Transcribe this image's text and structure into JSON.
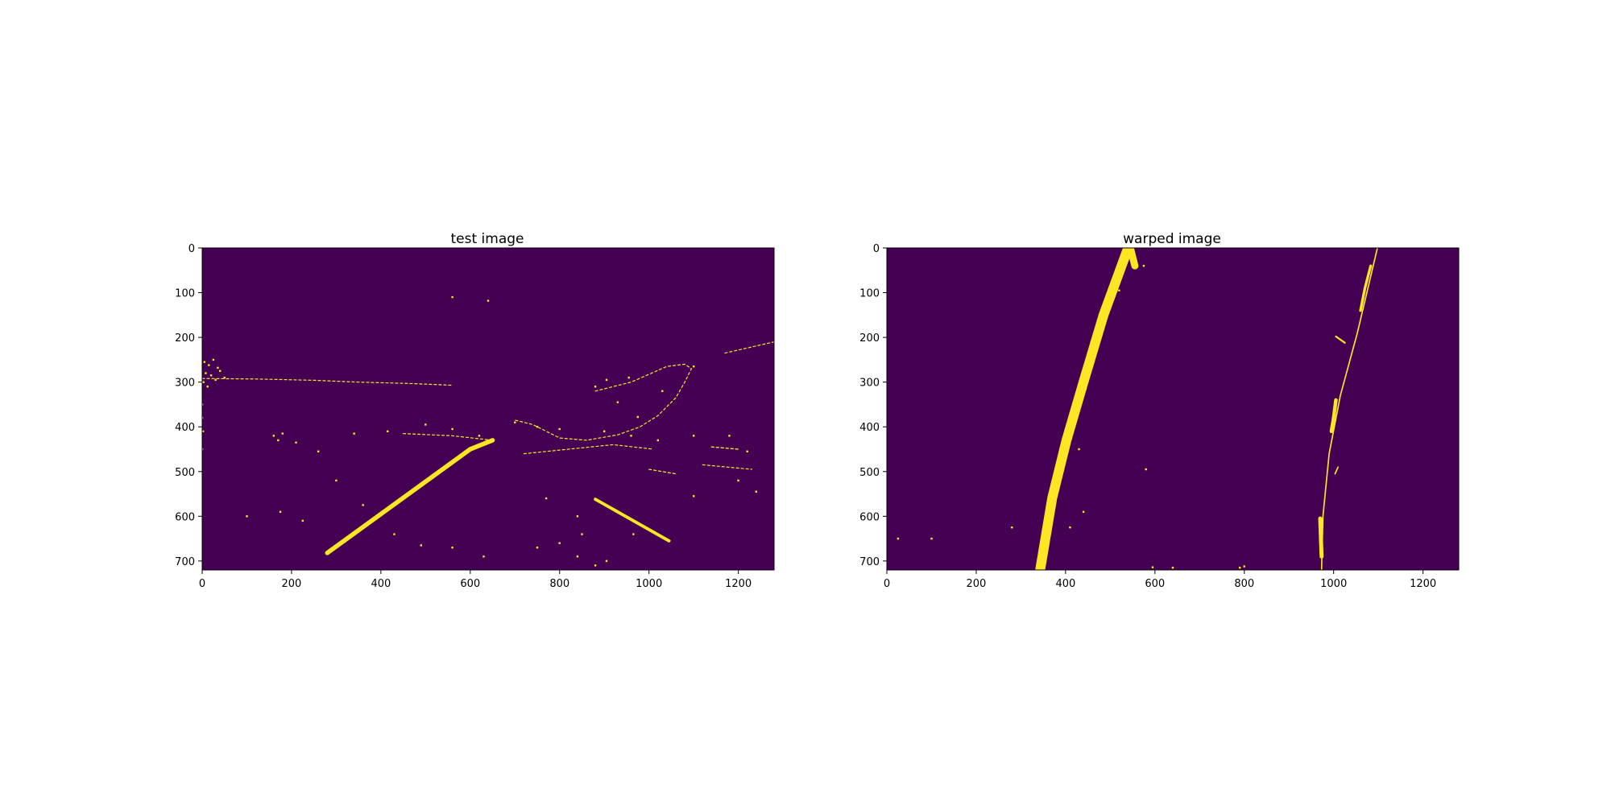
{
  "chart_data": [
    {
      "type": "heatmap",
      "title": "test image",
      "xlim": [
        0,
        1280
      ],
      "ylim": [
        720,
        0
      ],
      "x_ticks": [
        0,
        200,
        400,
        600,
        800,
        1000,
        1200
      ],
      "y_ticks": [
        0,
        100,
        200,
        300,
        400,
        500,
        600,
        700
      ],
      "colors": {
        "background": "#440154",
        "foreground": "#fde725"
      },
      "lane_strokes": [
        {
          "points": [
            [
              280,
              682
            ],
            [
              600,
              450
            ],
            [
              650,
              430
            ]
          ],
          "width": 10
        },
        {
          "points": [
            [
              880,
              562
            ],
            [
              1045,
              655
            ]
          ],
          "width": 7
        }
      ],
      "noise_polylines": [
        {
          "points": [
            [
              0,
              292
            ],
            [
              120,
              293
            ],
            [
              250,
              296
            ],
            [
              350,
              300
            ],
            [
              460,
              303
            ],
            [
              560,
              307
            ]
          ],
          "width": 2
        },
        {
          "points": [
            [
              880,
              320
            ],
            [
              960,
              300
            ],
            [
              1040,
              265
            ],
            [
              1080,
              260
            ],
            [
              1095,
              270
            ],
            [
              1080,
              300
            ],
            [
              1060,
              335
            ],
            [
              1020,
              375
            ],
            [
              980,
              400
            ],
            [
              930,
              418
            ],
            [
              860,
              430
            ],
            [
              800,
              425
            ],
            [
              740,
              395
            ],
            [
              700,
              385
            ]
          ],
          "width": 2
        },
        {
          "points": [
            [
              1170,
              235
            ],
            [
              1280,
              210
            ]
          ],
          "width": 2
        },
        {
          "points": [
            [
              1000,
              495
            ],
            [
              1060,
              505
            ]
          ],
          "width": 3
        },
        {
          "points": [
            [
              1120,
              485
            ],
            [
              1230,
              495
            ]
          ],
          "width": 2
        },
        {
          "points": [
            [
              720,
              460
            ],
            [
              820,
              450
            ],
            [
              920,
              440
            ],
            [
              1010,
              450
            ]
          ],
          "width": 2
        },
        {
          "points": [
            [
              450,
              415
            ],
            [
              560,
              420
            ],
            [
              650,
              430
            ]
          ],
          "width": 2
        },
        {
          "points": [
            [
              1140,
              445
            ],
            [
              1200,
              450
            ]
          ],
          "width": 3
        }
      ],
      "noise_points": [
        [
          5,
          255
        ],
        [
          15,
          262
        ],
        [
          25,
          250
        ],
        [
          35,
          268
        ],
        [
          8,
          280
        ],
        [
          20,
          285
        ],
        [
          40,
          275
        ],
        [
          3,
          300
        ],
        [
          12,
          310
        ],
        [
          30,
          295
        ],
        [
          50,
          290
        ],
        [
          0,
          350
        ],
        [
          0,
          380
        ],
        [
          2,
          410
        ],
        [
          0,
          450
        ],
        [
          160,
          420
        ],
        [
          170,
          430
        ],
        [
          180,
          415
        ],
        [
          210,
          435
        ],
        [
          260,
          455
        ],
        [
          340,
          415
        ],
        [
          415,
          410
        ],
        [
          500,
          395
        ],
        [
          560,
          405
        ],
        [
          620,
          420
        ],
        [
          700,
          390
        ],
        [
          750,
          400
        ],
        [
          800,
          405
        ],
        [
          900,
          410
        ],
        [
          960,
          420
        ],
        [
          1020,
          430
        ],
        [
          1100,
          420
        ],
        [
          1180,
          420
        ],
        [
          1220,
          455
        ],
        [
          1240,
          545
        ],
        [
          100,
          600
        ],
        [
          175,
          590
        ],
        [
          225,
          610
        ],
        [
          300,
          520
        ],
        [
          360,
          575
        ],
        [
          430,
          640
        ],
        [
          490,
          665
        ],
        [
          560,
          670
        ],
        [
          630,
          690
        ],
        [
          750,
          670
        ],
        [
          800,
          660
        ],
        [
          840,
          690
        ],
        [
          880,
          710
        ],
        [
          905,
          700
        ],
        [
          850,
          640
        ],
        [
          770,
          560
        ],
        [
          840,
          600
        ],
        [
          965,
          640
        ],
        [
          1100,
          555
        ],
        [
          1200,
          520
        ],
        [
          560,
          110
        ],
        [
          640,
          118
        ],
        [
          955,
          290
        ],
        [
          1100,
          265
        ],
        [
          1030,
          320
        ],
        [
          880,
          310
        ],
        [
          905,
          295
        ],
        [
          930,
          345
        ],
        [
          975,
          378
        ]
      ]
    },
    {
      "type": "heatmap",
      "title": "warped image",
      "xlim": [
        0,
        1280
      ],
      "ylim": [
        720,
        0
      ],
      "x_ticks": [
        0,
        200,
        400,
        600,
        800,
        1000,
        1200
      ],
      "y_ticks": [
        0,
        100,
        200,
        300,
        400,
        500,
        600,
        700
      ],
      "colors": {
        "background": "#440154",
        "foreground": "#fde725"
      },
      "lane_strokes": [
        {
          "points": [
            [
              343,
              720
            ],
            [
              370,
              560
            ],
            [
              402,
              430
            ],
            [
              440,
              300
            ],
            [
              485,
              150
            ],
            [
              540,
              0
            ]
          ],
          "width": 22
        },
        {
          "points": [
            [
              545,
              0
            ],
            [
              555,
              40
            ]
          ],
          "width": 16
        },
        {
          "points": [
            [
              973,
              720
            ],
            [
              976,
              600
            ],
            [
              990,
              460
            ],
            [
              1015,
              330
            ],
            [
              1053,
              190
            ],
            [
              1098,
              0
            ]
          ],
          "width": 3
        },
        {
          "points": [
            [
              1083,
              40
            ],
            [
              1070,
              90
            ],
            [
              1060,
              140
            ]
          ],
          "width": 6
        },
        {
          "points": [
            [
              1005,
              340
            ],
            [
              1000,
              380
            ],
            [
              995,
              410
            ]
          ],
          "width": 8
        },
        {
          "points": [
            [
              970,
              605
            ],
            [
              973,
              690
            ]
          ],
          "width": 9
        },
        {
          "points": [
            [
              1005,
              198
            ],
            [
              1025,
              212
            ]
          ],
          "width": 4
        },
        {
          "points": [
            [
              1010,
              490
            ],
            [
              1003,
              505
            ]
          ],
          "width": 3
        }
      ],
      "noise_polylines": [],
      "noise_points": [
        [
          25,
          650
        ],
        [
          100,
          650
        ],
        [
          280,
          625
        ],
        [
          410,
          625
        ],
        [
          580,
          495
        ],
        [
          440,
          590
        ],
        [
          640,
          715
        ],
        [
          790,
          715
        ],
        [
          800,
          712
        ],
        [
          595,
          714
        ],
        [
          445,
          315
        ],
        [
          430,
          450
        ],
        [
          520,
          95
        ],
        [
          575,
          40
        ]
      ]
    }
  ]
}
